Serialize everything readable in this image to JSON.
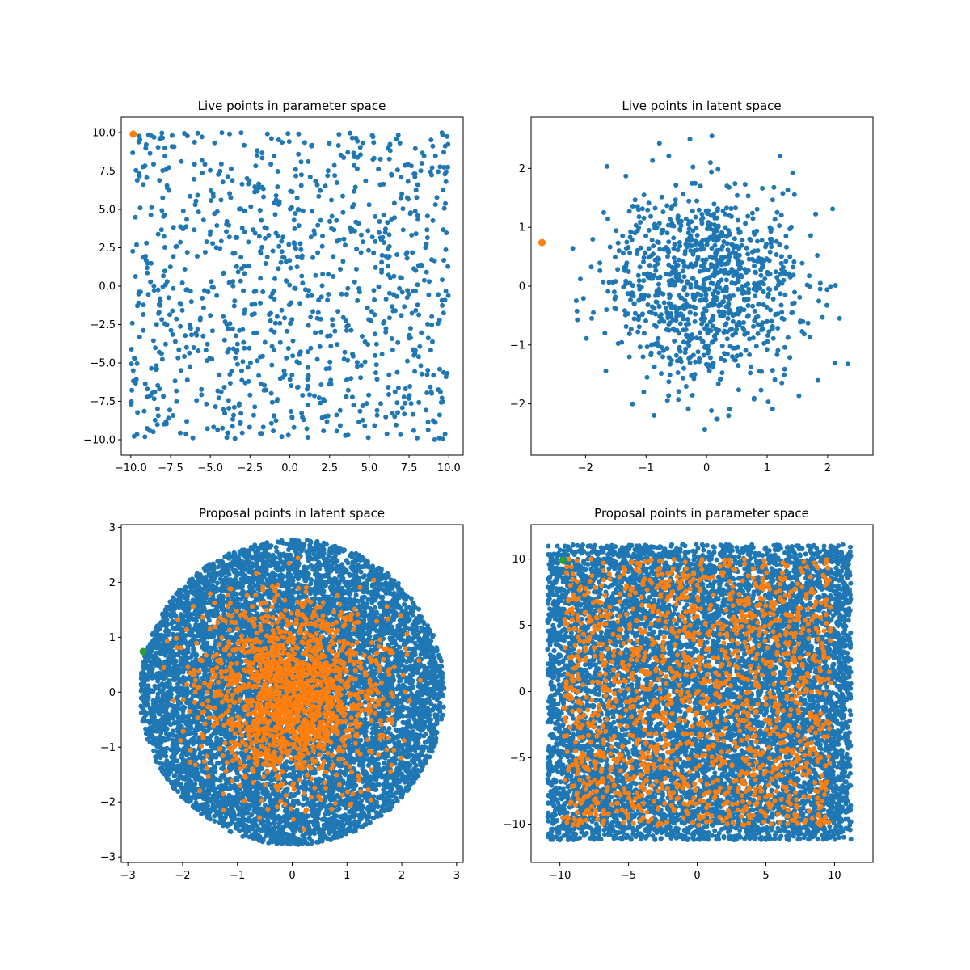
{
  "figure": {
    "background": "#ffffff"
  },
  "colors": {
    "c0": "#1f77b4",
    "c1": "#ff7f0e",
    "c2": "#2ca02c"
  },
  "chart_data": [
    {
      "type": "scatter",
      "title": "Live points in parameter space",
      "xlabel": "",
      "ylabel": "",
      "xlim": [
        -10.6,
        10.9
      ],
      "ylim": [
        -11.0,
        11.0
      ],
      "xticks": [
        -10.0,
        -7.5,
        -5.0,
        -2.5,
        0.0,
        2.5,
        5.0,
        7.5,
        10.0
      ],
      "xtick_labels": [
        "−10.0",
        "−7.5",
        "−5.0",
        "−2.5",
        "0.0",
        "2.5",
        "5.0",
        "7.5",
        "10.0"
      ],
      "yticks": [
        10.0,
        7.5,
        5.0,
        2.5,
        0.0,
        -2.5,
        -5.0,
        -7.5,
        -10.0
      ],
      "ytick_labels": [
        "10.0",
        "7.5",
        "5.0",
        "2.5",
        "0.0",
        "−2.5",
        "−5.0",
        "−7.5",
        "−10.0"
      ],
      "grid": false,
      "series": [
        {
          "color": "#1f77b4",
          "count": 1000,
          "distribution": "uniform-square",
          "xrange": [
            -10,
            10
          ],
          "yrange": [
            -10,
            10
          ],
          "marker_size": 3
        },
        {
          "color": "#ff7f0e",
          "points": [
            [
              -9.85,
              9.9
            ]
          ],
          "marker_size": 4.5
        }
      ]
    },
    {
      "type": "scatter",
      "title": "Live points in latent space",
      "xlabel": "",
      "ylabel": "",
      "xlim": [
        -2.9,
        2.75
      ],
      "ylim": [
        -2.87,
        2.87
      ],
      "xticks": [
        -2,
        -1,
        0,
        1,
        2
      ],
      "xtick_labels": [
        "−2",
        "−1",
        "0",
        "1",
        "2"
      ],
      "yticks": [
        2,
        1,
        0,
        -1,
        -2
      ],
      "ytick_labels": [
        "2",
        "1",
        "0",
        "−1",
        "−2"
      ],
      "grid": false,
      "series": [
        {
          "color": "#1f77b4",
          "count": 1000,
          "distribution": "normal",
          "center": [
            0,
            0
          ],
          "std": 0.85,
          "clip_radius": 2.7,
          "marker_size": 3
        },
        {
          "color": "#ff7f0e",
          "points": [
            [
              -2.72,
              0.74
            ]
          ],
          "marker_size": 4.5
        }
      ]
    },
    {
      "type": "scatter",
      "title": "Proposal points in latent space",
      "xlabel": "",
      "ylabel": "",
      "xlim": [
        -3.12,
        3.12
      ],
      "ylim": [
        -3.1,
        3.05
      ],
      "xticks": [
        -3,
        -2,
        -1,
        0,
        1,
        2,
        3
      ],
      "xtick_labels": [
        "−3",
        "−2",
        "−1",
        "0",
        "1",
        "2",
        "3"
      ],
      "yticks": [
        3,
        2,
        1,
        0,
        -1,
        -2,
        -3
      ],
      "ytick_labels": [
        "3",
        "2",
        "1",
        "0",
        "−1",
        "−2",
        "−3"
      ],
      "grid": false,
      "series": [
        {
          "color": "#1f77b4",
          "count": 9000,
          "distribution": "uniform-disk",
          "center": [
            0,
            0
          ],
          "radius": 2.78,
          "marker_size": 3
        },
        {
          "color": "#ff7f0e",
          "count": 1600,
          "distribution": "normal",
          "center": [
            0,
            0
          ],
          "std": 0.85,
          "clip_radius": 2.55,
          "marker_size": 3
        },
        {
          "color": "#2ca02c",
          "points": [
            [
              -2.72,
              0.74
            ]
          ],
          "marker_size": 4.5
        }
      ]
    },
    {
      "type": "scatter",
      "title": "Proposal points in parameter space",
      "xlabel": "",
      "ylabel": "",
      "xlim": [
        -12.1,
        12.8
      ],
      "ylim": [
        -12.9,
        12.6
      ],
      "xticks": [
        -10,
        -5,
        0,
        5,
        10
      ],
      "xtick_labels": [
        "−10",
        "−5",
        "0",
        "5",
        "10"
      ],
      "yticks": [
        10,
        5,
        0,
        -5,
        -10
      ],
      "ytick_labels": [
        "10",
        "5",
        "0",
        "−5",
        "−10"
      ],
      "grid": false,
      "series": [
        {
          "color": "#1f77b4",
          "count": 9000,
          "distribution": "uniform-square",
          "xrange": [
            -10.9,
            11.2
          ],
          "yrange": [
            -11.2,
            11.1
          ],
          "marker_size": 3
        },
        {
          "color": "#ff7f0e",
          "count": 1600,
          "distribution": "uniform-square",
          "xrange": [
            -9.8,
            9.7
          ],
          "yrange": [
            -10.1,
            10.0
          ],
          "marker_size": 3
        },
        {
          "color": "#2ca02c",
          "points": [
            [
              -9.8,
              9.9
            ]
          ],
          "marker_size": 4.5
        }
      ]
    }
  ]
}
